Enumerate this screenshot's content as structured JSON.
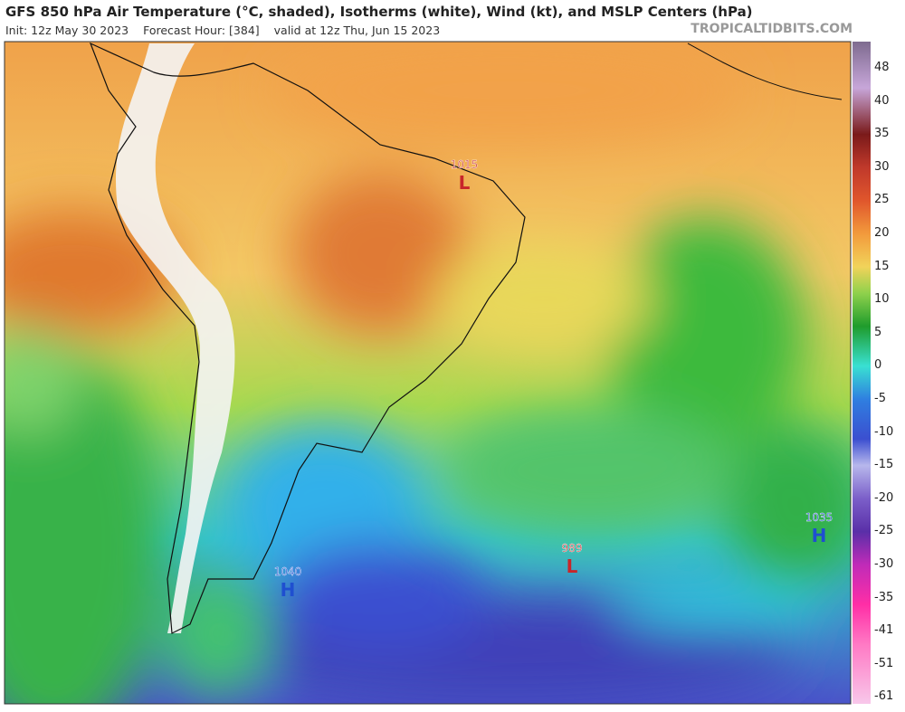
{
  "header": {
    "title": "GFS 850 hPa Air Temperature (°C, shaded), Isotherms (white), Wind (kt), and MSLP Centers (hPa)",
    "init": "Init: 12z May 30 2023",
    "forecast_hour": "Forecast Hour: [384]",
    "valid": "valid at 12z Thu, Jun 15 2023",
    "watermark": "TROPICALTIDBITS.COM"
  },
  "colorbar": {
    "labels": [
      48,
      40,
      35,
      30,
      25,
      20,
      15,
      10,
      5,
      0,
      -5,
      -10,
      -15,
      -20,
      -25,
      -30,
      -35,
      -41,
      -51,
      -61
    ]
  },
  "centers": [
    {
      "letter": "L",
      "value": 1015
    },
    {
      "letter": "L",
      "value": 989
    },
    {
      "letter": "H",
      "value": 1040
    },
    {
      "letter": "H",
      "value": 1035
    }
  ]
}
